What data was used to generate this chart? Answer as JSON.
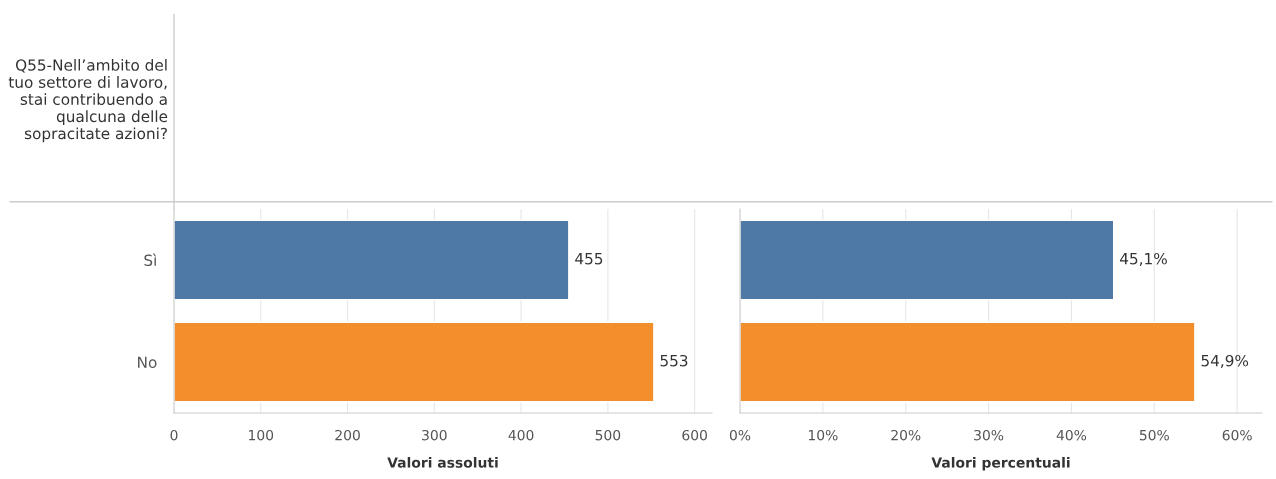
{
  "chart_data": [
    {
      "type": "bar",
      "orientation": "horizontal",
      "ylabel": "Q55-Nell’ambito del tuo settore di lavoro, stai contribuendo a qualcuna delle sopracitate azioni?",
      "xlabel": "Valori assoluti",
      "categories": [
        "Sì",
        "No"
      ],
      "values": [
        455,
        553
      ],
      "colors": [
        "#4e79a7",
        "#f28e2b"
      ],
      "data_labels": true,
      "xlim": [
        0,
        620
      ],
      "xticks": [
        0,
        100,
        200,
        300,
        400,
        500,
        600
      ],
      "grid": "x"
    },
    {
      "type": "bar",
      "orientation": "horizontal",
      "xlabel": "Valori percentuali",
      "categories": [
        null,
        null
      ],
      "values": [
        45.1,
        54.9
      ],
      "colors": [
        "#4e79a7",
        "#f28e2b"
      ],
      "value_labels": [
        "45,1%",
        "54,9%"
      ],
      "xlim": [
        0,
        63
      ],
      "xticks": [
        {
          "value": 0,
          "label": "0%"
        },
        {
          "value": 10,
          "label": "10%"
        },
        {
          "value": 20,
          "label": "20%"
        },
        {
          "value": 30,
          "label": "30%"
        },
        {
          "value": 40,
          "label": "40%"
        },
        {
          "value": 50,
          "label": "50%"
        },
        {
          "value": 60,
          "label": "60%"
        }
      ],
      "grid": "x"
    }
  ]
}
